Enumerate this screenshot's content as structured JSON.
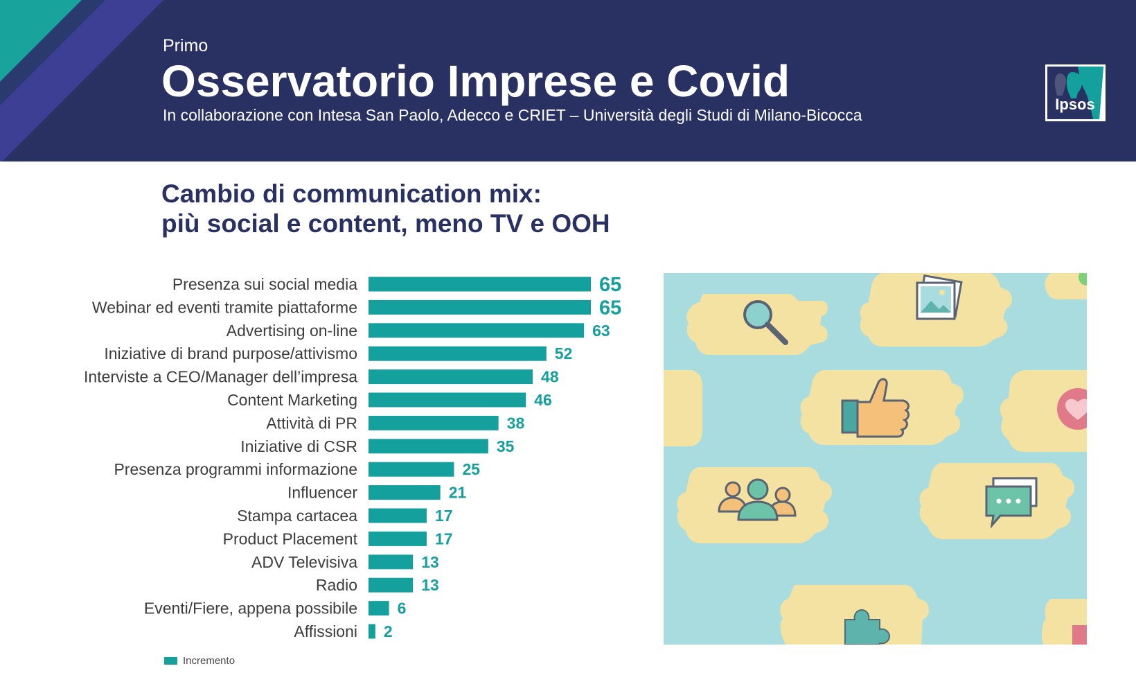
{
  "header": {
    "kicker": "Primo",
    "title": "Osservatorio Imprese e Covid",
    "collaboration": "In collaborazione con Intesa San Paolo, Adecco e CRIET – Università degli Studi di Milano-Bicocca",
    "logo_text": "Ipsos"
  },
  "slide_title": {
    "line1": "Cambio di communication mix:",
    "line2": "più social e content, meno TV e OOH"
  },
  "colors": {
    "navy": "#283162",
    "teal": "#14a09c",
    "stripe_teal": "#18a39d",
    "stripe_purple": "#3d3f95",
    "photo_bg": "#a9dcdf",
    "bubble": "#f4e2a2"
  },
  "chart_data": {
    "type": "bar",
    "orientation": "horizontal",
    "categories": [
      "Presenza sui social media",
      "Webinar ed eventi tramite piattaforme",
      "Advertising on-line",
      "Iniziative di brand purpose/attivismo",
      "Interviste a CEO/Manager dell’impresa",
      "Content Marketing",
      "Attività di PR",
      "Iniziative di CSR",
      "Presenza  programmi informazione",
      "Influencer",
      "Stampa cartacea",
      "Product Placement",
      "ADV Televisiva",
      "Radio",
      "Eventi/Fiere, appena possibile",
      "Affissioni"
    ],
    "series": [
      {
        "name": "Incremento",
        "values": [
          65,
          65,
          63,
          52,
          48,
          46,
          38,
          35,
          25,
          21,
          17,
          17,
          13,
          13,
          6,
          2
        ]
      }
    ],
    "xlim": [
      0,
      65
    ],
    "grid": false,
    "legend_position": "bottom-left"
  },
  "photo": {
    "icons": [
      "search-icon",
      "photo-icon",
      "thumbs-up-icon",
      "heart-icon",
      "people-icon",
      "chat-icon",
      "puzzle-icon"
    ]
  }
}
